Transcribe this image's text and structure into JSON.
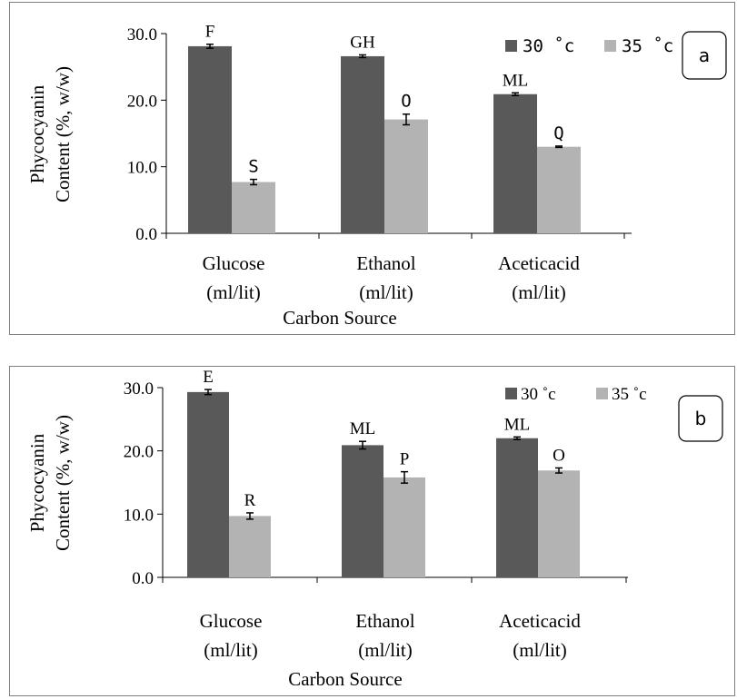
{
  "chart_data": [
    {
      "type": "bar",
      "panel_label": "a",
      "title": "",
      "xlabel": "Carbon Source",
      "ylabel_line1": "Phycocyanin",
      "ylabel_line2": "Content (%, w/w)",
      "ylim": [
        0,
        30
      ],
      "yticks": [
        "0.0",
        "10.0",
        "20.0",
        "30.0"
      ],
      "categories": [
        {
          "line1": "Glucose",
          "line2": "(ml/lit)"
        },
        {
          "line1": "Ethanol",
          "line2": "(ml/lit)"
        },
        {
          "line1": "Aceticacid",
          "line2": "(ml/lit)"
        }
      ],
      "series": [
        {
          "name": "30 ˚c",
          "color": "#595959",
          "values": [
            28.1,
            26.6,
            20.9
          ],
          "errors": [
            0.3,
            0.2,
            0.2
          ],
          "letters": [
            "F",
            "GH",
            "ML"
          ]
        },
        {
          "name": "35 ˚c",
          "color": "#b3b3b3",
          "values": [
            7.7,
            17.1,
            13.0
          ],
          "errors": [
            0.4,
            0.8,
            0.1
          ],
          "letters": [
            "S",
            "O",
            "Q"
          ]
        }
      ],
      "legend": "top-right",
      "grid": false
    },
    {
      "type": "bar",
      "panel_label": "b",
      "title": "",
      "xlabel": "Carbon Source",
      "ylabel_line1": "Phycocyanin",
      "ylabel_line2": "Content (%, w/w)",
      "ylim": [
        0,
        30
      ],
      "yticks": [
        "0.0",
        "10.0",
        "20.0",
        "30.0"
      ],
      "categories": [
        {
          "line1": "Glucose",
          "line2": "(ml/lit)"
        },
        {
          "line1": "Ethanol",
          "line2": "(ml/lit)"
        },
        {
          "line1": "Aceticacid",
          "line2": "(ml/lit)"
        }
      ],
      "series": [
        {
          "name": "30 ˚c",
          "color": "#595959",
          "values": [
            29.3,
            20.9,
            22.0
          ],
          "errors": [
            0.4,
            0.6,
            0.2
          ],
          "letters": [
            "E",
            "ML",
            "ML"
          ]
        },
        {
          "name": "35 ˚c",
          "color": "#b3b3b3",
          "values": [
            9.7,
            15.8,
            16.9
          ],
          "errors": [
            0.5,
            0.9,
            0.4
          ],
          "letters": [
            "R",
            "P",
            "O"
          ]
        }
      ],
      "legend": "top-right",
      "grid": false
    }
  ]
}
